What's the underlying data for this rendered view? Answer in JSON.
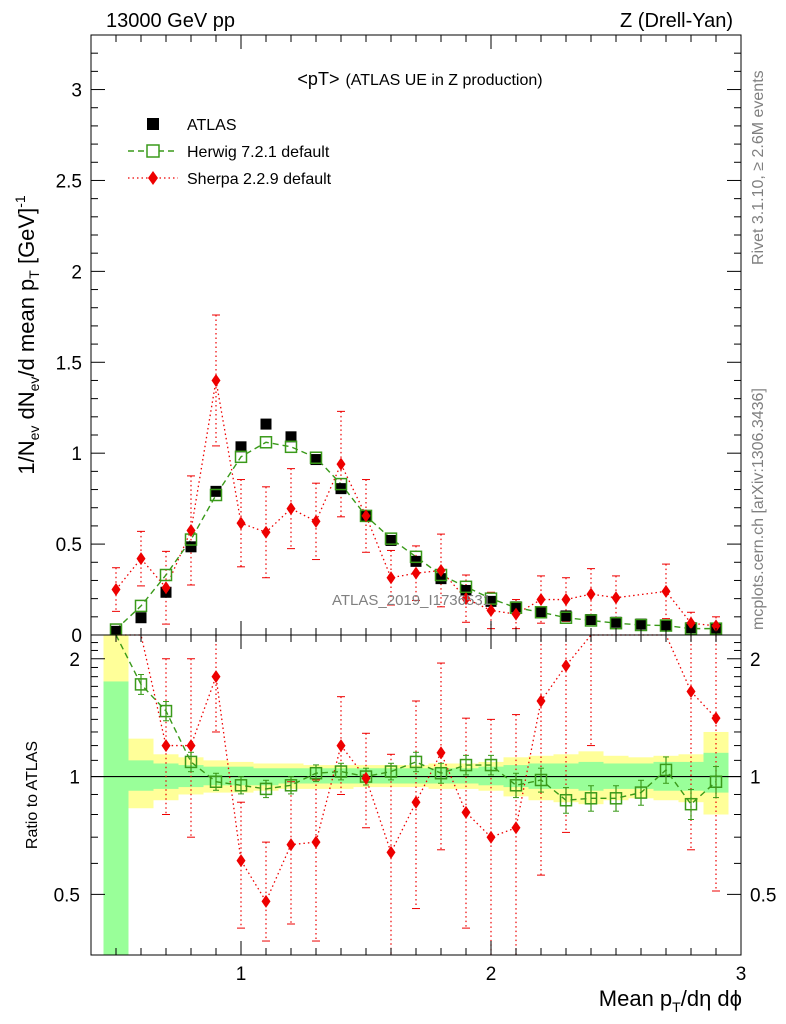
{
  "header": {
    "energy_label": "13000 GeV pp",
    "process_label": "Z (Drell-Yan)"
  },
  "side_labels": {
    "rivet": "Rivet 3.1.10, ≥ 2.6M events",
    "mcplots": "mcplots.cern.ch [arXiv:1306.3436]"
  },
  "watermark": "ATLAS_2019_I1736531",
  "chart_data": [
    {
      "type": "scatter",
      "title": "<pT> (ATLAS UE in Z production)",
      "title_main": "<pT>",
      "title_sub": "(ATLAS UE in Z production)",
      "ylabel": "1/N_ev dN_ev/d mean p_T [GeV]^-1",
      "xlabel": "Mean p_T/dη dϕ",
      "xlim": [
        0.4,
        3.0
      ],
      "ylim": [
        0,
        3.3
      ],
      "x_ticks": [
        1,
        2,
        3
      ],
      "y_ticks": [
        0,
        0.5,
        1,
        1.5,
        2,
        2.5,
        3
      ],
      "y_tick_labels": [
        "0",
        "0.5",
        "1",
        "1.5",
        "2",
        "2.5",
        "3"
      ],
      "legend_position": "top-left",
      "series": [
        {
          "name": "ATLAS",
          "color": "#000000",
          "marker": "filled-square",
          "x": [
            0.5,
            0.6,
            0.7,
            0.8,
            0.9,
            1.0,
            1.1,
            1.2,
            1.3,
            1.4,
            1.5,
            1.6,
            1.7,
            1.8,
            1.9,
            2.0,
            2.1,
            2.2,
            2.3,
            2.4,
            2.5,
            2.6,
            2.7,
            2.8,
            2.9
          ],
          "y": [
            0.02,
            0.095,
            0.235,
            0.485,
            0.79,
            1.035,
            1.16,
            1.09,
            0.965,
            0.805,
            0.655,
            0.52,
            0.405,
            0.31,
            0.245,
            0.185,
            0.155,
            0.125,
            0.105,
            0.085,
            0.07,
            0.06,
            0.05,
            0.04,
            0.035
          ]
        },
        {
          "name": "Herwig 7.2.1 default",
          "color": "#3a9a1a",
          "marker": "open-square",
          "line": "dashed",
          "x": [
            0.5,
            0.6,
            0.7,
            0.8,
            0.9,
            1.0,
            1.1,
            1.2,
            1.3,
            1.4,
            1.5,
            1.6,
            1.7,
            1.8,
            1.9,
            2.0,
            2.1,
            2.2,
            2.3,
            2.4,
            2.5,
            2.6,
            2.7,
            2.8,
            2.9
          ],
          "y": [
            0.03,
            0.16,
            0.33,
            0.525,
            0.77,
            0.98,
            1.06,
            1.035,
            0.975,
            0.83,
            0.655,
            0.53,
            0.43,
            0.33,
            0.265,
            0.2,
            0.15,
            0.125,
            0.095,
            0.08,
            0.065,
            0.055,
            0.052,
            0.035,
            0.035
          ],
          "y_err": [
            0.005,
            0.01,
            0.01,
            0.01,
            0.01,
            0.01,
            0.01,
            0.01,
            0.01,
            0.01,
            0.01,
            0.01,
            0.01,
            0.01,
            0.008,
            0.008,
            0.008,
            0.006,
            0.006,
            0.006,
            0.005,
            0.005,
            0.005,
            0.004,
            0.004
          ]
        },
        {
          "name": "Sherpa 2.2.9 default",
          "color": "#ee0000",
          "marker": "filled-diamond",
          "line": "dotted",
          "x": [
            0.5,
            0.6,
            0.7,
            0.8,
            0.9,
            1.0,
            1.1,
            1.2,
            1.3,
            1.4,
            1.5,
            1.6,
            1.7,
            1.8,
            1.9,
            2.0,
            2.1,
            2.2,
            2.3,
            2.4,
            2.5,
            2.6,
            2.7,
            2.8,
            2.9
          ],
          "y": [
            0.25,
            0.42,
            0.26,
            0.575,
            1.4,
            0.615,
            0.565,
            0.695,
            0.625,
            0.94,
            0.655,
            0.315,
            0.34,
            0.355,
            0.2,
            0.135,
            0.115,
            0.195,
            0.195,
            0.225,
            0.205,
            null,
            0.24,
            0.065,
            0.05
          ],
          "y_err": [
            0.12,
            0.15,
            0.2,
            0.3,
            0.36,
            0.24,
            0.25,
            0.22,
            0.21,
            0.29,
            0.2,
            0.15,
            0.15,
            0.2,
            0.13,
            0.1,
            0.08,
            0.13,
            0.12,
            0.14,
            0.12,
            null,
            0.15,
            0.06,
            0.05
          ]
        }
      ]
    },
    {
      "type": "scatter",
      "title": "",
      "ylabel": "Ratio to ATLAS",
      "xlabel": "Mean p_T/dη dϕ",
      "xlim": [
        0.4,
        3.0
      ],
      "ylim": [
        0.35,
        2.3
      ],
      "y_log": true,
      "x_ticks": [
        1,
        2,
        3
      ],
      "x_tick_labels": [
        "1",
        "2",
        "3"
      ],
      "y_ticks": [
        0.5,
        1,
        2
      ],
      "y_tick_labels": [
        "0.5",
        "1",
        "2"
      ],
      "reference_line": 1,
      "bands": {
        "bin_edges": [
          0.45,
          0.55,
          0.65,
          0.75,
          0.85,
          0.95,
          1.05,
          1.15,
          1.25,
          1.35,
          1.45,
          1.55,
          1.65,
          1.75,
          1.85,
          1.95,
          2.05,
          2.15,
          2.25,
          2.35,
          2.45,
          2.55,
          2.65,
          2.75,
          2.85,
          2.95
        ],
        "stat_color": "#99ff99",
        "total_color": "#ffff99",
        "total_lo": [
          0.35,
          0.83,
          0.87,
          0.9,
          0.91,
          0.91,
          0.92,
          0.93,
          0.93,
          0.93,
          0.94,
          0.94,
          0.94,
          0.93,
          0.93,
          0.92,
          0.89,
          0.87,
          0.86,
          0.85,
          0.87,
          0.88,
          0.87,
          0.86,
          0.8
        ],
        "total_hi": [
          2.3,
          1.25,
          1.14,
          1.12,
          1.1,
          1.09,
          1.08,
          1.08,
          1.07,
          1.07,
          1.07,
          1.07,
          1.07,
          1.08,
          1.08,
          1.09,
          1.12,
          1.13,
          1.14,
          1.16,
          1.13,
          1.12,
          1.13,
          1.14,
          1.3
        ],
        "stat_lo": [
          0.35,
          0.92,
          0.93,
          0.94,
          0.95,
          0.95,
          0.95,
          0.96,
          0.96,
          0.96,
          0.96,
          0.96,
          0.96,
          0.96,
          0.96,
          0.95,
          0.94,
          0.93,
          0.93,
          0.92,
          0.93,
          0.93,
          0.92,
          0.92,
          0.91
        ],
        "stat_hi": [
          1.75,
          1.1,
          1.08,
          1.07,
          1.06,
          1.06,
          1.05,
          1.05,
          1.05,
          1.05,
          1.05,
          1.05,
          1.05,
          1.05,
          1.05,
          1.06,
          1.07,
          1.08,
          1.08,
          1.09,
          1.08,
          1.08,
          1.09,
          1.09,
          1.15
        ]
      },
      "series": [
        {
          "name": "Herwig 7.2.1 default",
          "color": "#3a9a1a",
          "marker": "open-square",
          "x": [
            0.5,
            0.6,
            0.7,
            0.8,
            0.9,
            1.0,
            1.1,
            1.2,
            1.3,
            1.4,
            1.5,
            1.6,
            1.7,
            1.8,
            1.9,
            2.0,
            2.1,
            2.2,
            2.3,
            2.4,
            2.5,
            2.6,
            2.7,
            2.8,
            2.9
          ],
          "y": [
            2.5,
            1.72,
            1.47,
            1.09,
            0.97,
            0.95,
            0.93,
            0.95,
            1.02,
            1.03,
            1.0,
            1.03,
            1.09,
            1.02,
            1.07,
            1.07,
            0.95,
            0.98,
            0.87,
            0.88,
            0.88,
            0.91,
            1.04,
            0.85,
            0.97
          ],
          "y_err": [
            0.1,
            0.05,
            0.04,
            0.03,
            0.02,
            0.02,
            0.02,
            0.02,
            0.02,
            0.02,
            0.02,
            0.02,
            0.03,
            0.03,
            0.03,
            0.03,
            0.04,
            0.04,
            0.04,
            0.04,
            0.04,
            0.04,
            0.05,
            0.05,
            0.06
          ]
        },
        {
          "name": "Sherpa 2.2.9 default",
          "color": "#ee0000",
          "marker": "filled-diamond",
          "x": [
            0.5,
            0.6,
            0.7,
            0.8,
            0.9,
            1.0,
            1.1,
            1.2,
            1.3,
            1.4,
            1.5,
            1.6,
            1.7,
            1.8,
            1.9,
            2.0,
            2.1,
            2.2,
            2.3,
            2.4,
            2.5,
            2.6,
            2.7,
            2.8,
            2.9
          ],
          "y": [
            null,
            null,
            1.2,
            1.2,
            1.8,
            0.61,
            0.48,
            0.67,
            0.68,
            1.2,
            0.99,
            0.64,
            0.86,
            1.15,
            0.81,
            0.7,
            0.74,
            1.56,
            1.92,
            2.4,
            null,
            null,
            null,
            1.65,
            1.41
          ],
          "y_err_lo": [
            null,
            null,
            0.4,
            0.5,
            0.5,
            0.2,
            0.1,
            0.25,
            0.3,
            0.3,
            0.25,
            0.3,
            0.4,
            0.5,
            0.4,
            0.4,
            0.5,
            1.0,
            1.2,
            1.2,
            null,
            null,
            null,
            1.0,
            0.9
          ],
          "y_err_hi": [
            null,
            null,
            0.8,
            0.8,
            1.2,
            0.25,
            0.2,
            0.3,
            0.3,
            0.4,
            0.3,
            0.5,
            0.7,
            0.8,
            0.6,
            0.7,
            0.7,
            1.5,
            1.5,
            1.5,
            null,
            null,
            null,
            1.5,
            1.2
          ]
        }
      ]
    }
  ]
}
